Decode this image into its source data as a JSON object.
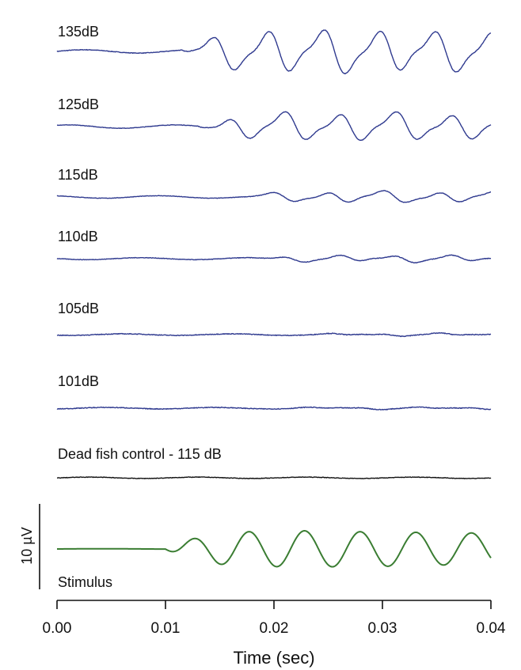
{
  "chart_data": {
    "type": "line",
    "title": "",
    "xlabel": "Time (sec)",
    "ylabel": "",
    "xlim": [
      0,
      0.04
    ],
    "x_ticks": [
      "0.00",
      "0.01",
      "0.02",
      "0.03",
      "0.04"
    ],
    "x_tick_values": [
      0,
      0.01,
      0.02,
      0.03,
      0.04
    ],
    "scale_bar_label": "10 µV",
    "grid": false,
    "series": [
      {
        "name": "135dB",
        "color": "#2f3a8f",
        "amplitude_uV": 5.6,
        "onset_s": 0.0115,
        "osc_freq_hz": 195,
        "noise": 0.06
      },
      {
        "name": "125dB",
        "color": "#2f3a8f",
        "amplitude_uV": 3.6,
        "onset_s": 0.013,
        "osc_freq_hz": 195,
        "noise": 0.05
      },
      {
        "name": "115dB",
        "color": "#2f3a8f",
        "amplitude_uV": 1.4,
        "onset_s": 0.017,
        "osc_freq_hz": 195,
        "noise": 0.05
      },
      {
        "name": "110dB",
        "color": "#2f3a8f",
        "amplitude_uV": 0.8,
        "onset_s": 0.018,
        "osc_freq_hz": 195,
        "noise": 0.06
      },
      {
        "name": "105dB",
        "color": "#2f3a8f",
        "amplitude_uV": 0.25,
        "onset_s": 0.022,
        "osc_freq_hz": 195,
        "noise": 0.08
      },
      {
        "name": "101dB",
        "color": "#2f3a8f",
        "amplitude_uV": 0.2,
        "onset_s": 0.02,
        "osc_freq_hz": 195,
        "noise": 0.08
      },
      {
        "name": "Dead fish control - 115 dB",
        "color": "#111111",
        "amplitude_uV": 0.0,
        "onset_s": 0.04,
        "osc_freq_hz": 195,
        "noise": 0.06
      },
      {
        "name": "Stimulus",
        "color": "#3a7d32",
        "amplitude_uV": 4.4,
        "onset_s": 0.01,
        "osc_freq_hz": 195,
        "noise": 0.0
      }
    ]
  }
}
